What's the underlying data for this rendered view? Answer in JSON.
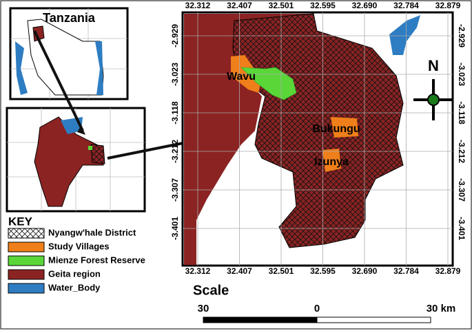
{
  "inset": {
    "title": "Tanzania"
  },
  "key": {
    "title": "KEY",
    "items": [
      "Nyangw'hale District",
      "Study Villages",
      "Mienze Forest Reserve",
      "Geita region",
      "Water_Body"
    ]
  },
  "map": {
    "xticks": [
      "32.312",
      "32.407",
      "32.501",
      "32.595",
      "32.690",
      "32.784",
      "32.879"
    ],
    "yticks": [
      "-2.929",
      "-3.023",
      "-3.118",
      "-3.212",
      "-3.307",
      "-3.401"
    ],
    "places": [
      "Wavu",
      "Bukungu",
      "Izunya"
    ],
    "north": "N"
  },
  "scale": {
    "title": "Scale",
    "labels": [
      "30",
      "0",
      "30 km"
    ]
  }
}
